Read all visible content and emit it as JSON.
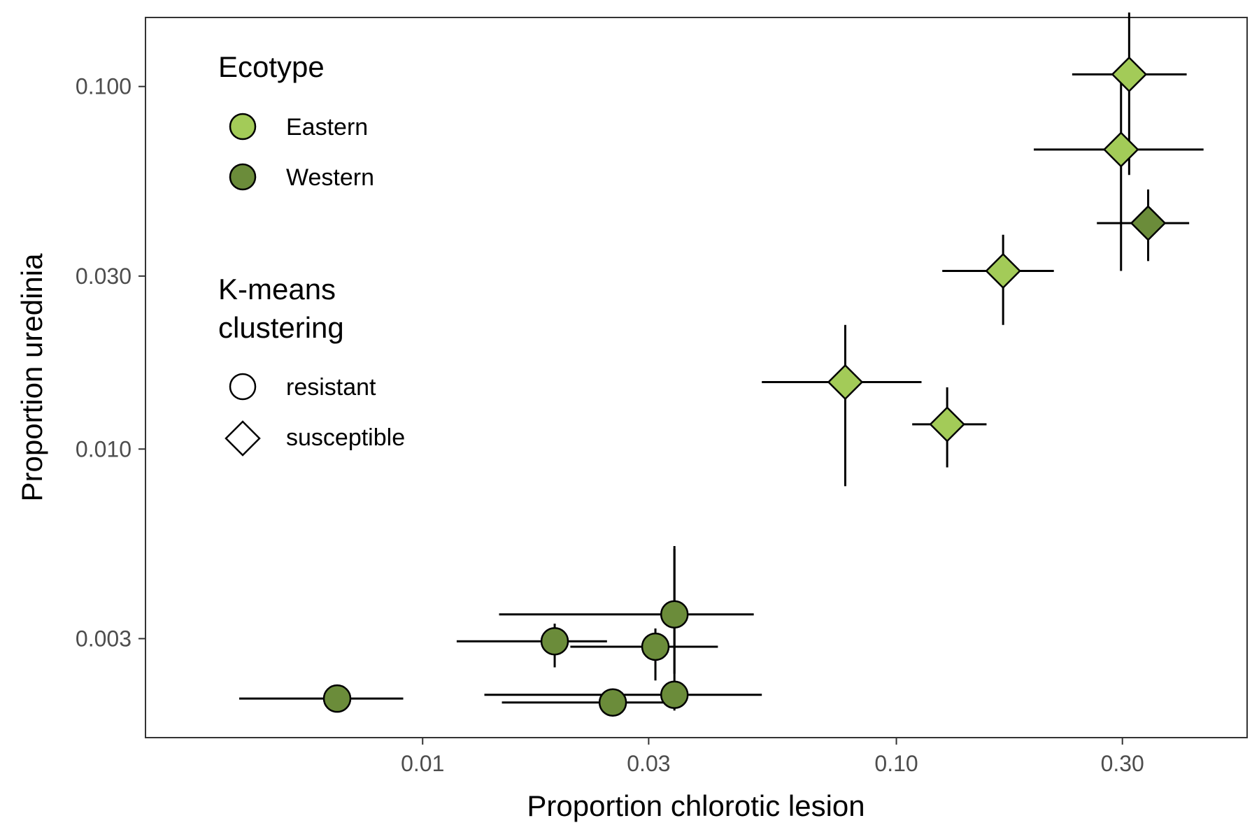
{
  "chart_data": {
    "type": "scatter",
    "title": "",
    "xlabel": "Proportion chlorotic lesion",
    "ylabel": "Proportion uredinia",
    "x_scale": "log",
    "y_scale": "log",
    "xlim": [
      0.0026,
      0.55
    ],
    "ylim": [
      0.0016,
      0.155
    ],
    "x_ticks": [
      {
        "value": 0.01,
        "label": "0.01"
      },
      {
        "value": 0.03,
        "label": "0.03"
      },
      {
        "value": 0.1,
        "label": "0.10"
      },
      {
        "value": 0.3,
        "label": "0.30"
      }
    ],
    "y_ticks": [
      {
        "value": 0.003,
        "label": "0.003"
      },
      {
        "value": 0.01,
        "label": "0.010"
      },
      {
        "value": 0.03,
        "label": "0.030"
      },
      {
        "value": 0.1,
        "label": "0.100"
      }
    ],
    "grid": false,
    "colors": {
      "Eastern": "#a3cb58",
      "Western": "#6b8c3a"
    },
    "legend": {
      "placement": "top-left",
      "ecotype": {
        "title": "Ecotype",
        "entries": [
          "Eastern",
          "Western"
        ]
      },
      "cluster": {
        "title_lines": [
          "K-means",
          "clustering"
        ],
        "entries": [
          "resistant",
          "susceptible"
        ]
      }
    },
    "points": [
      {
        "x": 0.31,
        "y": 0.108,
        "x_err": [
          0.235,
          0.41
        ],
        "y_err": [
          0.057,
          0.16
        ],
        "ecotype": "Eastern",
        "cluster": "susceptible"
      },
      {
        "x": 0.298,
        "y": 0.067,
        "x_err": [
          0.195,
          0.445
        ],
        "y_err": [
          0.031,
          0.105
        ],
        "ecotype": "Eastern",
        "cluster": "susceptible"
      },
      {
        "x": 0.34,
        "y": 0.042,
        "x_err": [
          0.265,
          0.415
        ],
        "y_err": [
          0.033,
          0.052
        ],
        "ecotype": "Western",
        "cluster": "susceptible"
      },
      {
        "x": 0.168,
        "y": 0.031,
        "x_err": [
          0.125,
          0.215
        ],
        "y_err": [
          0.022,
          0.039
        ],
        "ecotype": "Eastern",
        "cluster": "susceptible"
      },
      {
        "x": 0.078,
        "y": 0.0153,
        "x_err": [
          0.052,
          0.113
        ],
        "y_err": [
          0.0079,
          0.022
        ],
        "ecotype": "Eastern",
        "cluster": "susceptible"
      },
      {
        "x": 0.128,
        "y": 0.0117,
        "x_err": [
          0.108,
          0.155
        ],
        "y_err": [
          0.0089,
          0.0148
        ],
        "ecotype": "Eastern",
        "cluster": "susceptible"
      },
      {
        "x": 0.034,
        "y": 0.0035,
        "x_err": [
          0.0145,
          0.05
        ],
        "y_err": [
          0.0024,
          0.0054
        ],
        "ecotype": "Western",
        "cluster": "resistant"
      },
      {
        "x": 0.019,
        "y": 0.00295,
        "x_err": [
          0.0118,
          0.0245
        ],
        "y_err": [
          0.0025,
          0.0033
        ],
        "ecotype": "Western",
        "cluster": "resistant"
      },
      {
        "x": 0.031,
        "y": 0.00285,
        "x_err": [
          0.0205,
          0.042
        ],
        "y_err": [
          0.0023,
          0.0032
        ],
        "ecotype": "Western",
        "cluster": "resistant"
      },
      {
        "x": 0.034,
        "y": 0.0021,
        "x_err": [
          0.0135,
          0.052
        ],
        "y_err": [
          0.0019,
          0.0053
        ],
        "ecotype": "Western",
        "cluster": "resistant"
      },
      {
        "x": 0.0252,
        "y": 0.002,
        "x_err": [
          0.0147,
          0.0335
        ],
        "y_err": null,
        "ecotype": "Western",
        "cluster": "resistant"
      },
      {
        "x": 0.0066,
        "y": 0.00205,
        "x_err": [
          0.0041,
          0.0091
        ],
        "y_err": null,
        "ecotype": "Western",
        "cluster": "resistant"
      }
    ]
  }
}
